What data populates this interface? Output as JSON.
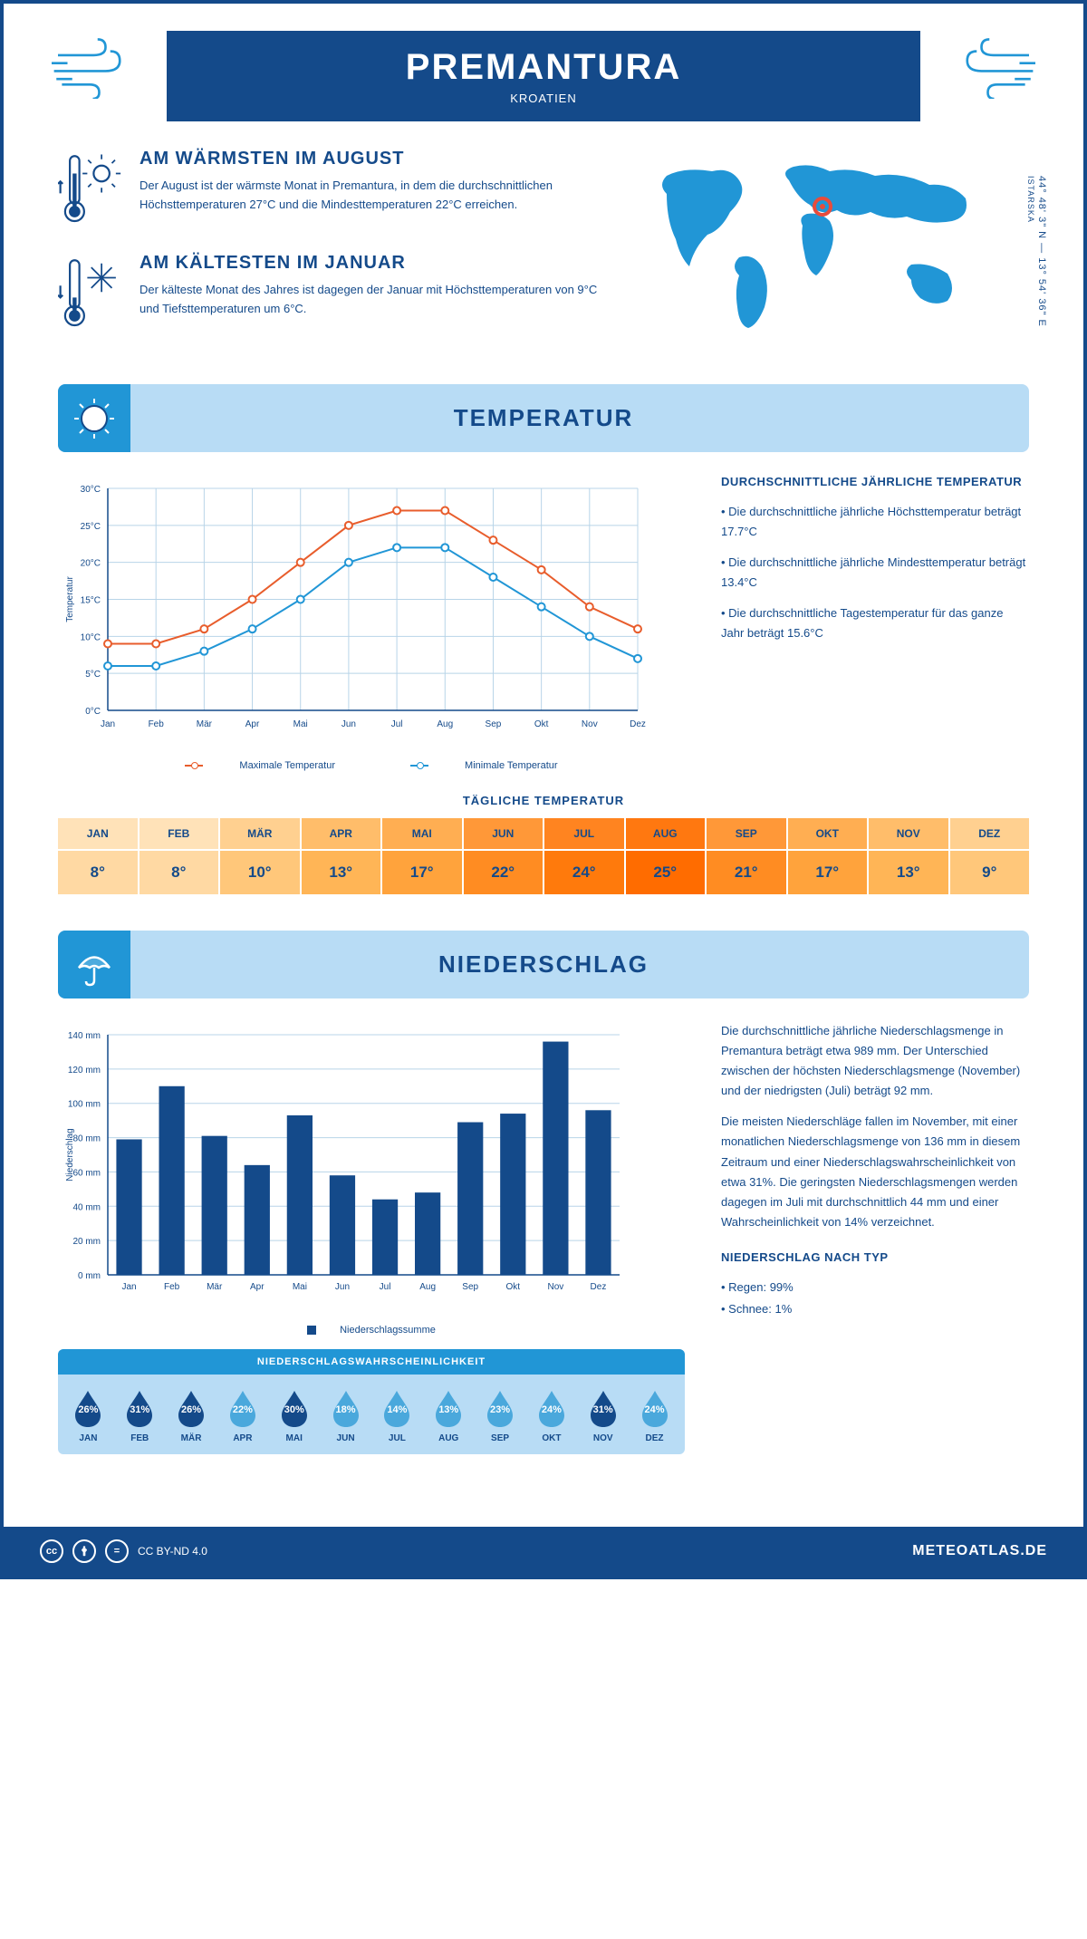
{
  "header": {
    "title": "PREMANTURA",
    "subtitle": "KROATIEN"
  },
  "coords": {
    "lat": "44° 48' 3\" N",
    "lon": "13° 54' 36\" E",
    "region": "ISTARSKA"
  },
  "intro": {
    "warm": {
      "title": "AM WÄRMSTEN IM AUGUST",
      "text": "Der August ist der wärmste Monat in Premantura, in dem die durchschnittlichen Höchsttemperaturen 27°C und die Mindesttemperaturen 22°C erreichen."
    },
    "cold": {
      "title": "AM KÄLTESTEN IM JANUAR",
      "text": "Der kälteste Monat des Jahres ist dagegen der Januar mit Höchsttemperaturen von 9°C und Tiefsttemperaturen um 6°C."
    }
  },
  "months": [
    "Jan",
    "Feb",
    "Mär",
    "Apr",
    "Mai",
    "Jun",
    "Jul",
    "Aug",
    "Sep",
    "Okt",
    "Nov",
    "Dez"
  ],
  "months_upper": [
    "JAN",
    "FEB",
    "MÄR",
    "APR",
    "MAI",
    "JUN",
    "JUL",
    "AUG",
    "SEP",
    "OKT",
    "NOV",
    "DEZ"
  ],
  "temp_section": {
    "title": "TEMPERATUR",
    "chart": {
      "ylabel": "Temperatur",
      "ylim": [
        0,
        30
      ],
      "ytick_step": 5,
      "max": {
        "label": "Maximale Temperatur",
        "color": "#e85d2c",
        "values": [
          9,
          9,
          11,
          15,
          20,
          25,
          27,
          27,
          23,
          19,
          14,
          11
        ]
      },
      "min": {
        "label": "Minimale Temperatur",
        "color": "#2196d6",
        "values": [
          6,
          6,
          8,
          11,
          15,
          20,
          22,
          22,
          18,
          14,
          10,
          7
        ]
      },
      "grid_color": "#b8d4e8",
      "axis_color": "#144a8a"
    },
    "info": {
      "title": "DURCHSCHNITTLICHE JÄHRLICHE TEMPERATUR",
      "p1": "• Die durchschnittliche jährliche Höchsttemperatur beträgt 17.7°C",
      "p2": "• Die durchschnittliche jährliche Mindesttemperatur beträgt 13.4°C",
      "p3": "• Die durchschnittliche Tagestemperatur für das ganze Jahr beträgt 15.6°C"
    },
    "daily": {
      "title": "TÄGLICHE TEMPERATUR",
      "values": [
        "8°",
        "8°",
        "10°",
        "13°",
        "17°",
        "22°",
        "24°",
        "25°",
        "21°",
        "17°",
        "13°",
        "9°"
      ],
      "header_colors": [
        "#ffe2b8",
        "#ffe2b8",
        "#ffd090",
        "#ffbd6a",
        "#ffae52",
        "#ff9838",
        "#ff8420",
        "#ff7810",
        "#ff9838",
        "#ffae52",
        "#ffbd6a",
        "#ffd090"
      ],
      "value_colors": [
        "#ffd9a3",
        "#ffd9a3",
        "#ffc77a",
        "#ffb556",
        "#ffa33c",
        "#ff8c22",
        "#ff7a0c",
        "#ff6c00",
        "#ff8c22",
        "#ffa33c",
        "#ffb556",
        "#ffc77a"
      ]
    }
  },
  "precip_section": {
    "title": "NIEDERSCHLAG",
    "chart": {
      "ylabel": "Niederschlag",
      "ylim": [
        0,
        140
      ],
      "ytick_step": 20,
      "bar_color": "#144a8a",
      "values": [
        79,
        110,
        81,
        64,
        93,
        58,
        44,
        48,
        89,
        94,
        136,
        96
      ],
      "legend": "Niederschlagssumme"
    },
    "info": {
      "p1": "Die durchschnittliche jährliche Niederschlagsmenge in Premantura beträgt etwa 989 mm. Der Unterschied zwischen der höchsten Niederschlagsmenge (November) und der niedrigsten (Juli) beträgt 92 mm.",
      "p2": "Die meisten Niederschläge fallen im November, mit einer monatlichen Niederschlagsmenge von 136 mm in diesem Zeitraum und einer Niederschlagswahrscheinlichkeit von etwa 31%. Die geringsten Niederschlagsmengen werden dagegen im Juli mit durchschnittlich 44 mm und einer Wahrscheinlichkeit von 14% verzeichnet.",
      "type_title": "NIEDERSCHLAG NACH TYP",
      "type1": "• Regen: 99%",
      "type2": "• Schnee: 1%"
    },
    "prob": {
      "title": "NIEDERSCHLAGSWAHRSCHEINLICHKEIT",
      "values": [
        "26%",
        "31%",
        "26%",
        "22%",
        "30%",
        "18%",
        "14%",
        "13%",
        "23%",
        "24%",
        "31%",
        "24%"
      ],
      "dark": "#144a8a",
      "light": "#4aa8dc",
      "dark_idx": [
        0,
        1,
        2,
        4,
        10
      ]
    }
  },
  "footer": {
    "license": "CC BY-ND 4.0",
    "site": "METEOATLAS.DE"
  }
}
